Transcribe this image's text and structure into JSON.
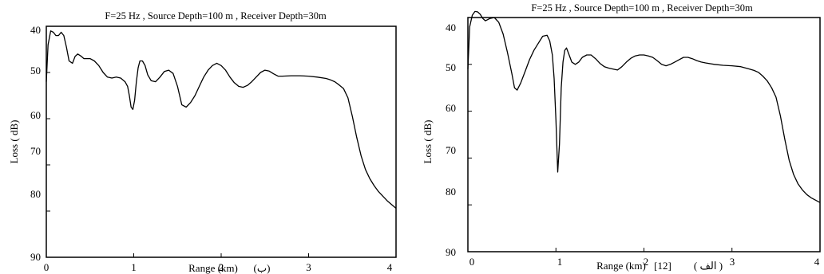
{
  "chart_data": [
    {
      "type": "line",
      "title": "F=25 Hz , Source Depth=100 m , Receiver Depth=30m",
      "xlabel": "Range (km)",
      "xlabel_tag": "(ب)",
      "ylabel": "Loss ( dB)",
      "xlim": [
        0,
        4
      ],
      "ylim": [
        40,
        90
      ],
      "y_inverted": true,
      "grid": false,
      "x_ticks": [
        "0",
        "1",
        "2",
        "3",
        "4"
      ],
      "y_ticks": [
        "40",
        "50",
        "60",
        "70",
        "80",
        "90"
      ],
      "series": [
        {
          "x": [
            0.0,
            0.02,
            0.05,
            0.08,
            0.11,
            0.14,
            0.17,
            0.2,
            0.23,
            0.26,
            0.3,
            0.33,
            0.36,
            0.4,
            0.43,
            0.47,
            0.5,
            0.55,
            0.6,
            0.65,
            0.7,
            0.75,
            0.8,
            0.85,
            0.9,
            0.93,
            0.95,
            0.97,
            0.99,
            1.01,
            1.03,
            1.05,
            1.07,
            1.1,
            1.13,
            1.16,
            1.2,
            1.25,
            1.3,
            1.35,
            1.4,
            1.45,
            1.5,
            1.55,
            1.6,
            1.65,
            1.7,
            1.75,
            1.8,
            1.85,
            1.9,
            1.95,
            2.0,
            2.05,
            2.1,
            2.15,
            2.2,
            2.25,
            2.3,
            2.35,
            2.4,
            2.45,
            2.5,
            2.55,
            2.6,
            2.65,
            2.7,
            2.8,
            2.9,
            3.0,
            3.1,
            3.2,
            3.25,
            3.3,
            3.35,
            3.4,
            3.45,
            3.5,
            3.55,
            3.6,
            3.65,
            3.7,
            3.75,
            3.8,
            3.85,
            3.9,
            3.95,
            4.0
          ],
          "y": [
            52.0,
            44.0,
            41.0,
            41.3,
            42.0,
            42.0,
            41.3,
            42.0,
            44.5,
            47.5,
            48.0,
            46.5,
            46.0,
            46.5,
            47.0,
            47.0,
            47.0,
            47.5,
            48.5,
            50.0,
            51.0,
            51.2,
            51.0,
            51.2,
            52.0,
            53.0,
            55.0,
            57.5,
            58.0,
            56.0,
            52.0,
            49.0,
            47.5,
            47.5,
            48.5,
            50.5,
            51.8,
            52.0,
            51.0,
            49.8,
            49.5,
            50.2,
            53.0,
            57.0,
            57.5,
            56.5,
            55.0,
            53.0,
            51.0,
            49.5,
            48.5,
            48.0,
            48.5,
            49.5,
            51.0,
            52.2,
            53.0,
            53.2,
            52.8,
            52.0,
            51.0,
            50.0,
            49.5,
            49.7,
            50.3,
            50.8,
            50.8,
            50.7,
            50.7,
            50.8,
            51.0,
            51.3,
            51.6,
            52.0,
            52.7,
            53.5,
            55.5,
            59.5,
            64.0,
            68.0,
            71.0,
            73.0,
            74.5,
            75.8,
            76.8,
            77.8,
            78.6,
            79.4
          ]
        }
      ]
    },
    {
      "type": "line",
      "title": "F=25 Hz , Source Depth=100 m , Receiver Depth=30m",
      "xlabel": "Range (km)",
      "xlabel_ref": "[12]",
      "xlabel_tag": "( الف )",
      "ylabel": "Loss ( dB)",
      "xlim": [
        0,
        4
      ],
      "ylim": [
        40,
        90
      ],
      "y_inverted": true,
      "grid": false,
      "x_ticks": [
        "0",
        "1",
        "2",
        "3",
        "4"
      ],
      "y_ticks": [
        "40",
        "50",
        "60",
        "70",
        "80",
        "90"
      ],
      "series": [
        {
          "x": [
            0.0,
            0.02,
            0.05,
            0.08,
            0.11,
            0.14,
            0.17,
            0.2,
            0.25,
            0.3,
            0.35,
            0.4,
            0.45,
            0.5,
            0.53,
            0.56,
            0.6,
            0.65,
            0.7,
            0.75,
            0.8,
            0.85,
            0.9,
            0.93,
            0.96,
            0.98,
            1.0,
            1.02,
            1.04,
            1.06,
            1.08,
            1.1,
            1.12,
            1.15,
            1.18,
            1.22,
            1.26,
            1.3,
            1.35,
            1.4,
            1.45,
            1.5,
            1.55,
            1.6,
            1.65,
            1.7,
            1.75,
            1.8,
            1.85,
            1.9,
            1.95,
            2.0,
            2.05,
            2.1,
            2.15,
            2.2,
            2.25,
            2.3,
            2.35,
            2.4,
            2.45,
            2.5,
            2.55,
            2.6,
            2.65,
            2.7,
            2.8,
            2.9,
            3.0,
            3.1,
            3.2,
            3.25,
            3.3,
            3.35,
            3.4,
            3.45,
            3.5,
            3.55,
            3.6,
            3.65,
            3.7,
            3.75,
            3.8,
            3.85,
            3.9,
            3.95,
            4.0
          ],
          "y": [
            51.0,
            42.0,
            39.5,
            38.7,
            38.8,
            39.3,
            40.2,
            40.7,
            40.2,
            40.0,
            41.0,
            43.5,
            47.5,
            52.0,
            55.0,
            55.5,
            54.0,
            51.5,
            49.0,
            47.0,
            45.5,
            44.0,
            43.8,
            45.0,
            48.0,
            53.0,
            62.0,
            73.0,
            67.0,
            55.0,
            49.5,
            47.0,
            46.5,
            48.0,
            49.5,
            50.0,
            49.5,
            48.5,
            48.0,
            48.0,
            48.8,
            49.8,
            50.5,
            50.8,
            51.0,
            51.2,
            50.5,
            49.5,
            48.7,
            48.2,
            48.0,
            48.0,
            48.2,
            48.5,
            49.2,
            50.0,
            50.3,
            50.0,
            49.5,
            49.0,
            48.5,
            48.5,
            48.8,
            49.2,
            49.5,
            49.7,
            50.0,
            50.2,
            50.3,
            50.5,
            51.0,
            51.3,
            51.7,
            52.5,
            53.5,
            55.0,
            57.0,
            61.0,
            66.0,
            70.5,
            73.5,
            75.5,
            76.8,
            77.8,
            78.5,
            79.0,
            79.5
          ]
        }
      ]
    }
  ]
}
